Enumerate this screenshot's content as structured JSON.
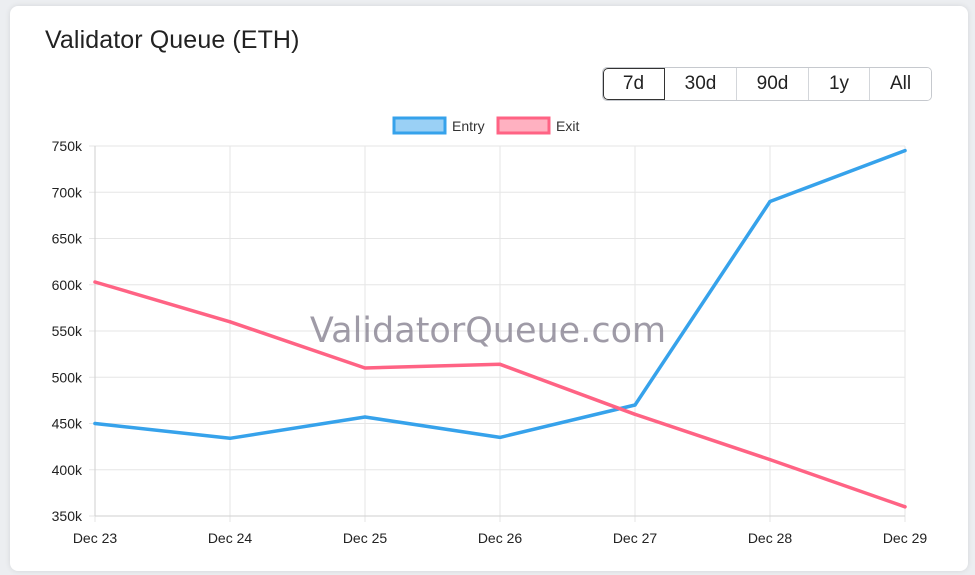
{
  "card": {
    "title": "Validator Queue (ETH)",
    "watermark": "ValidatorQueue.com"
  },
  "range_buttons": [
    {
      "label": "7d",
      "active": true
    },
    {
      "label": "30d",
      "active": false
    },
    {
      "label": "90d",
      "active": false
    },
    {
      "label": "1y",
      "active": false
    },
    {
      "label": "All",
      "active": false
    }
  ],
  "chart_data": {
    "type": "line",
    "title": "",
    "xlabel": "",
    "ylabel": "",
    "categories": [
      "Dec 23",
      "Dec 24",
      "Dec 25",
      "Dec 26",
      "Dec 27",
      "Dec 28",
      "Dec 29"
    ],
    "series": [
      {
        "name": "Entry",
        "color": "#36a2eb",
        "fill": "#9ad0f5",
        "values": [
          450000,
          434000,
          457000,
          435000,
          470000,
          690000,
          745000
        ]
      },
      {
        "name": "Exit",
        "color": "#ff6384",
        "fill": "#ffb1c1",
        "values": [
          603000,
          560000,
          510000,
          514000,
          460000,
          411000,
          360000
        ]
      }
    ],
    "ylim": [
      350000,
      750000
    ],
    "yticks": [
      {
        "value": 350000,
        "label": "350k"
      },
      {
        "value": 400000,
        "label": "400k"
      },
      {
        "value": 450000,
        "label": "450k"
      },
      {
        "value": 500000,
        "label": "500k"
      },
      {
        "value": 550000,
        "label": "550k"
      },
      {
        "value": 600000,
        "label": "600k"
      },
      {
        "value": 650000,
        "label": "650k"
      },
      {
        "value": 700000,
        "label": "700k"
      },
      {
        "value": 750000,
        "label": "750k"
      }
    ],
    "grid": true,
    "legend_position": "top-center"
  }
}
